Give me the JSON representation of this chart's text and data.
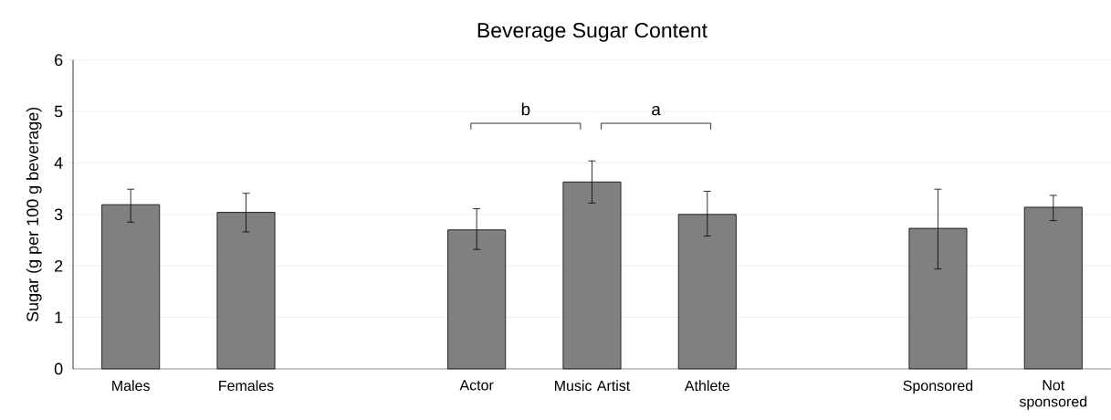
{
  "chart_data": {
    "type": "bar",
    "title": "Beverage Sugar Content",
    "ylabel": "Sugar (g per 100 g beverage)",
    "categories": [
      "Males",
      "Females",
      null,
      "Actor",
      "Music Artist",
      "Athlete",
      null,
      "Sponsored",
      "Not sponsored"
    ],
    "values": [
      3.19,
      3.04,
      null,
      2.7,
      3.63,
      3.0,
      null,
      2.73,
      3.14
    ],
    "errors": [
      [
        2.85,
        3.49
      ],
      [
        2.66,
        3.41
      ],
      null,
      [
        2.32,
        3.11
      ],
      [
        3.22,
        4.04
      ],
      [
        2.58,
        3.45
      ],
      null,
      [
        1.94,
        3.49
      ],
      [
        2.88,
        3.37
      ]
    ],
    "color": "#808080",
    "ylim": [
      0,
      6
    ],
    "yticks": [
      0,
      1,
      2,
      3,
      4,
      5,
      6
    ],
    "grid": "y",
    "annotations": [
      "b",
      "a"
    ]
  }
}
